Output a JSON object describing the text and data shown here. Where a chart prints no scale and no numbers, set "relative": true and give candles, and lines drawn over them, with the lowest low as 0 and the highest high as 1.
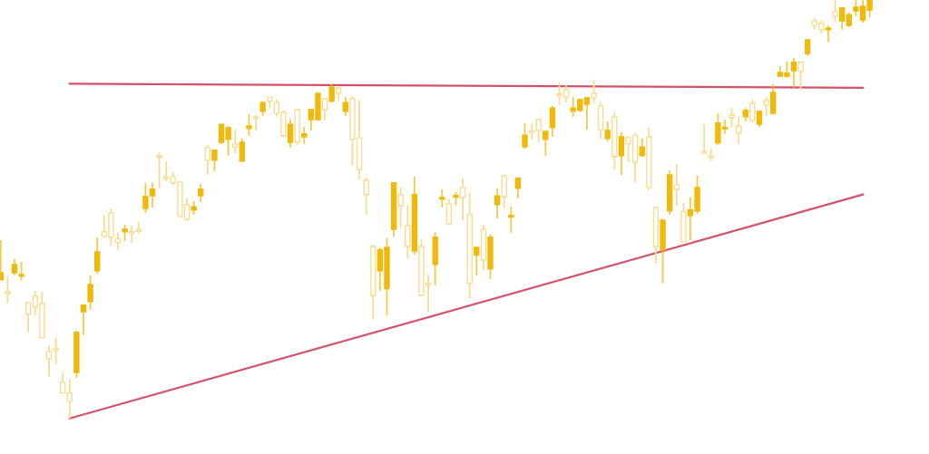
{
  "chart_data": {
    "type": "candlestick",
    "relative": true,
    "colors": [
      "#f0b90b",
      "#f7dd92",
      "#f0b90b",
      "#f0b90b",
      "#f7dd92",
      "#f7dd92",
      "#f7dd92",
      "#f7dd92",
      "#f7dd92",
      "#f7dd92",
      "#f7dd92",
      "#f0b90b",
      "#f0b90b",
      "#f0b90b",
      "#f0b90b",
      "#f7dd92",
      "#f7dd92",
      "#f7dd92",
      "#f0b90b",
      "#f7dd92",
      "#f7dd92",
      "#f0b90b",
      "#f0b90b",
      "#f7dd92",
      "#f7dd92",
      "#f7dd92",
      "#f7dd92",
      "#f7dd92",
      "#f0b90b",
      "#f0b90b",
      "#f7dd92",
      "#f0b90b",
      "#f0b90b",
      "#f0b90b",
      "#f7dd92",
      "#f0b90b",
      "#f0b90b",
      "#f7dd92",
      "#f0b90b",
      "#f7dd92",
      "#f7dd92",
      "#f7dd92",
      "#f0b90b",
      "#f7dd92",
      "#f0b90b",
      "#f0b90b",
      "#f0b90b",
      "#f7dd92",
      "#f0b90b",
      "#f7dd92",
      "#f0b90b",
      "#f7dd92",
      "#f7dd92",
      "#f7dd92",
      "#f7dd92",
      "#f0b90b",
      "#f0b90b",
      "#f0b90b",
      "#f7dd92",
      "#f7dd92",
      "#f0b90b",
      "#f7dd92",
      "#f7dd92",
      "#f0b90b",
      "#f0b90b",
      "#f7dd92",
      "#f0b90b",
      "#f7dd92",
      "#f7dd92",
      "#f0b90b",
      "#f7dd92",
      "#f0b90b",
      "#f0b90b",
      "#f7dd92",
      "#f0b90b",
      "#f0b90b",
      "#f0b90b",
      "#f7dd92",
      "#f7dd92",
      "#f0b90b",
      "#f0b90b",
      "#f7dd92",
      "#f7dd92",
      "#f0b90b",
      "#f0b90b",
      "#f0b90b",
      "#f7dd92",
      "#f7dd92",
      "#f0b90b",
      "#f7dd92",
      "#f0b90b",
      "#f7dd92",
      "#f7dd92",
      "#f0b90b",
      "#f7dd92",
      "#f7dd92",
      "#f0b90b",
      "#f0b90b",
      "#f7dd92",
      "#f7dd92",
      "#f0b90b",
      "#f0b90b",
      "#f7dd92",
      "#f7dd92",
      "#f0b90b",
      "#f0b90b",
      "#f7dd92",
      "#f7dd92",
      "#f0b90b",
      "#f7dd92",
      "#f0b90b",
      "#f7dd92",
      "#f0b90b",
      "#f0b90b",
      "#f0b90b",
      "#f0b90b",
      "#f7dd92",
      "#f0b90b",
      "#f7dd92",
      "#f7dd92",
      "#f0b90b",
      "#f7dd92",
      "#f0b90b",
      "#f0b90b",
      "#f0b90b",
      "#f0b90b",
      "#f0b90b",
      null,
      null,
      null,
      null,
      null
    ],
    "categories": [
      null,
      null,
      null,
      null,
      null,
      null,
      null,
      null,
      null,
      null,
      null,
      null,
      null,
      null,
      null,
      null,
      null,
      null,
      null,
      null,
      null,
      null,
      null,
      null,
      null,
      null,
      null,
      null,
      null,
      null,
      null,
      null,
      null,
      null,
      null,
      null,
      null,
      null,
      null,
      null,
      null,
      null,
      null,
      null,
      null,
      null,
      null,
      null,
      null,
      null,
      null,
      null,
      null,
      null,
      null,
      null,
      null,
      null,
      null,
      null,
      null,
      null,
      null,
      null,
      null,
      null,
      null,
      null,
      null,
      null,
      null,
      null,
      null,
      null,
      null,
      null,
      null,
      null,
      null,
      null,
      null,
      null,
      null,
      null,
      null,
      null,
      null,
      null,
      null,
      null,
      null,
      null,
      null,
      null,
      null,
      null,
      null,
      null,
      null,
      null,
      null,
      null,
      null,
      null,
      null,
      null,
      null,
      null,
      null,
      null,
      null,
      null,
      null,
      null,
      null,
      null,
      null,
      null,
      null,
      null,
      null,
      null,
      null,
      null,
      null,
      null,
      null,
      null,
      null,
      null,
      null,
      null
    ],
    "ohlc": [
      [
        0.331,
        0.426,
        0.331,
        0.348
      ],
      [
        0.303,
        0.34,
        0.275,
        0.299
      ],
      [
        0.348,
        0.381,
        0.342,
        0.368
      ],
      [
        0.34,
        0.374,
        0.329,
        0.344
      ],
      [
        0.277,
        0.279,
        0.206,
        0.249
      ],
      [
        0.292,
        0.305,
        0.247,
        0.266
      ],
      [
        0.275,
        0.303,
        0.193,
        0.193
      ],
      [
        0.16,
        0.173,
        0.1,
        0.143
      ],
      [
        0.167,
        0.193,
        0.13,
        0.163
      ],
      [
        0.087,
        0.11,
        0.061,
        0.061
      ],
      [
        0.061,
        0.095,
        0.0,
        0.041
      ],
      [
        0.11,
        0.21,
        0.097,
        0.206
      ],
      [
        0.255,
        0.273,
        0.199,
        0.271
      ],
      [
        0.279,
        0.342,
        0.26,
        0.32
      ],
      [
        0.353,
        0.433,
        0.346,
        0.398
      ],
      [
        0.446,
        0.487,
        0.433,
        0.435
      ],
      [
        0.491,
        0.502,
        0.413,
        0.433
      ],
      [
        0.429,
        0.444,
        0.403,
        0.42
      ],
      [
        0.446,
        0.463,
        0.424,
        0.452
      ],
      [
        0.444,
        0.461,
        0.42,
        0.442
      ],
      [
        0.45,
        0.47,
        0.442,
        0.447
      ],
      [
        0.502,
        0.563,
        0.491,
        0.53
      ],
      [
        0.532,
        0.563,
        0.504,
        0.548
      ],
      [
        0.628,
        0.636,
        0.55,
        0.624
      ],
      [
        0.576,
        0.615,
        0.567,
        0.573
      ],
      [
        0.578,
        0.589,
        0.558,
        0.563
      ],
      [
        0.565,
        0.567,
        0.481,
        0.483
      ],
      [
        0.511,
        0.526,
        0.472,
        0.476
      ],
      [
        0.498,
        0.519,
        0.487,
        0.506
      ],
      [
        0.532,
        0.561,
        0.517,
        0.548
      ],
      [
        0.647,
        0.654,
        0.582,
        0.617
      ],
      [
        0.617,
        0.641,
        0.591,
        0.641
      ],
      [
        0.66,
        0.703,
        0.656,
        0.703
      ],
      [
        0.667,
        0.699,
        0.628,
        0.695
      ],
      [
        0.656,
        0.69,
        0.634,
        0.649
      ],
      [
        0.615,
        0.669,
        0.613,
        0.66
      ],
      [
        0.693,
        0.727,
        0.675,
        0.699
      ],
      [
        0.719,
        0.725,
        0.688,
        0.716
      ],
      [
        0.734,
        0.758,
        0.723,
        0.755
      ],
      [
        0.768,
        0.768,
        0.742,
        0.758
      ],
      [
        0.755,
        0.762,
        0.721,
        0.729
      ],
      [
        0.732,
        0.736,
        0.673,
        0.675
      ],
      [
        0.66,
        0.716,
        0.647,
        0.703
      ],
      [
        0.738,
        0.74,
        0.654,
        0.66
      ],
      [
        0.673,
        0.697,
        0.656,
        0.68
      ],
      [
        0.714,
        0.74,
        0.688,
        0.738
      ],
      [
        0.714,
        0.777,
        0.712,
        0.777
      ],
      [
        0.764,
        0.766,
        0.712,
        0.738
      ],
      [
        0.758,
        0.799,
        0.755,
        0.792
      ],
      [
        0.79,
        0.79,
        0.76,
        0.777
      ],
      [
        0.734,
        0.768,
        0.723,
        0.755
      ],
      [
        0.764,
        0.771,
        0.604,
        0.667
      ],
      [
        0.671,
        0.76,
        0.571,
        0.595
      ],
      [
        0.569,
        0.576,
        0.487,
        0.535
      ],
      [
        0.411,
        0.416,
        0.236,
        0.294
      ],
      [
        0.353,
        0.409,
        0.305,
        0.403
      ],
      [
        0.31,
        0.431,
        0.247,
        0.409
      ],
      [
        0.452,
        0.563,
        0.435,
        0.563
      ],
      [
        0.535,
        0.552,
        0.455,
        0.509
      ],
      [
        0.461,
        0.509,
        0.381,
        0.411
      ],
      [
        0.4,
        0.578,
        0.392,
        0.535
      ],
      [
        0.411,
        0.429,
        0.292,
        0.294
      ],
      [
        0.323,
        0.344,
        0.255,
        0.319
      ],
      [
        0.368,
        0.446,
        0.318,
        0.433
      ],
      [
        0.524,
        0.548,
        0.504,
        0.527
      ],
      [
        0.513,
        0.524,
        0.463,
        0.465
      ],
      [
        0.529,
        0.541,
        0.509,
        0.532
      ],
      [
        0.552,
        0.574,
        0.474,
        0.528
      ],
      [
        0.487,
        0.539,
        0.286,
        0.323
      ],
      [
        0.39,
        0.409,
        0.342,
        0.409
      ],
      [
        0.452,
        0.463,
        0.355,
        0.379
      ],
      [
        0.357,
        0.439,
        0.333,
        0.433
      ],
      [
        0.511,
        0.55,
        0.478,
        0.532
      ],
      [
        0.58,
        0.582,
        0.502,
        0.53
      ],
      [
        0.481,
        0.506,
        0.444,
        0.483
      ],
      [
        0.55,
        0.576,
        0.526,
        0.574
      ],
      [
        0.649,
        0.706,
        0.645,
        0.677
      ],
      [
        0.686,
        0.703,
        0.667,
        0.683
      ],
      [
        0.714,
        0.716,
        0.66,
        0.688
      ],
      [
        0.667,
        0.686,
        0.628,
        0.686
      ],
      [
        0.695,
        0.747,
        0.673,
        0.742
      ],
      [
        0.774,
        0.803,
        0.749,
        0.772
      ],
      [
        0.786,
        0.797,
        0.755,
        0.768
      ],
      [
        0.734,
        0.768,
        0.721,
        0.742
      ],
      [
        0.736,
        0.764,
        0.732,
        0.762
      ],
      [
        0.751,
        0.768,
        0.69,
        0.766
      ],
      [
        0.777,
        0.81,
        0.755,
        0.766
      ],
      [
        0.747,
        0.755,
        0.667,
        0.69
      ],
      [
        0.669,
        0.71,
        0.662,
        0.688
      ],
      [
        0.721,
        0.734,
        0.595,
        0.626
      ],
      [
        0.628,
        0.684,
        0.582,
        0.673
      ],
      [
        0.671,
        0.675,
        0.613,
        0.656
      ],
      [
        0.677,
        0.682,
        0.563,
        0.613
      ],
      [
        0.628,
        0.669,
        0.626,
        0.649
      ],
      [
        0.673,
        0.695,
        0.545,
        0.552
      ],
      [
        0.504,
        0.504,
        0.37,
        0.411
      ],
      [
        0.403,
        0.474,
        0.323,
        0.474
      ],
      [
        0.496,
        0.593,
        0.487,
        0.582
      ],
      [
        0.558,
        0.608,
        0.509,
        0.548
      ],
      [
        0.494,
        0.515,
        0.422,
        0.422
      ],
      [
        0.485,
        0.528,
        0.426,
        0.498
      ],
      [
        0.496,
        0.58,
        0.489,
        0.552
      ],
      [
        0.636,
        0.703,
        0.632,
        0.634
      ],
      [
        0.626,
        0.645,
        0.615,
        0.623
      ],
      [
        0.658,
        0.729,
        0.654,
        0.706
      ],
      [
        0.692,
        0.714,
        0.68,
        0.695
      ],
      [
        0.725,
        0.742,
        0.695,
        0.719
      ],
      [
        0.699,
        0.721,
        0.656,
        0.682
      ],
      [
        0.721,
        0.742,
        0.71,
        0.736
      ],
      [
        0.753,
        0.762,
        0.708,
        0.712
      ],
      [
        0.703,
        0.736,
        0.697,
        0.734
      ],
      [
        0.76,
        0.768,
        0.723,
        0.749
      ],
      [
        0.729,
        0.799,
        0.727,
        0.779
      ],
      [
        0.818,
        0.842,
        0.818,
        0.827
      ],
      [
        0.818,
        0.853,
        0.814,
        0.825
      ],
      [
        0.831,
        0.861,
        0.79,
        0.851
      ],
      [
        0.851,
        0.851,
        0.784,
        0.829
      ],
      [
        0.872,
        0.907,
        0.866,
        0.905
      ],
      [
        0.95,
        0.957,
        0.929,
        0.939
      ],
      [
        0.944,
        0.952,
        0.92,
        0.929
      ],
      [
        0.929,
        0.939,
        0.9,
        0.931
      ],
      [
        0.972,
        1.0,
        0.946,
        0.961
      ],
      [
        0.95,
        0.983,
        0.929,
        0.981
      ],
      [
        0.939,
        0.97,
        0.935,
        0.965
      ],
      [
        0.974,
        1.0,
        0.961,
        0.983
      ],
      [
        0.952,
        1.0,
        0.946,
        0.985
      ],
      [
        0.976,
        1.0,
        0.959,
        1.0
      ],
      null,
      null,
      null,
      null,
      null
    ],
    "series": [
      {
        "type": "line",
        "color": "#d6506a",
        "values": [
          null,
          null,
          null,
          null,
          null,
          null,
          null,
          null,
          null,
          null,
          0.8,
          null,
          null,
          null,
          null,
          null,
          null,
          null,
          null,
          null,
          null,
          null,
          null,
          null,
          null,
          null,
          null,
          null,
          null,
          null,
          null,
          null,
          null,
          null,
          null,
          null,
          null,
          null,
          null,
          null,
          null,
          null,
          null,
          null,
          null,
          null,
          null,
          null,
          null,
          null,
          null,
          null,
          null,
          null,
          null,
          null,
          null,
          null,
          null,
          null,
          null,
          null,
          null,
          null,
          null,
          null,
          null,
          null,
          null,
          null,
          null,
          null,
          null,
          null,
          null,
          null,
          null,
          null,
          null,
          null,
          null,
          null,
          null,
          null,
          null,
          null,
          null,
          null,
          null,
          null,
          null,
          null,
          null,
          null,
          null,
          null,
          null,
          null,
          null,
          null,
          null,
          null,
          null,
          null,
          null,
          null,
          null,
          null,
          null,
          null,
          null,
          null,
          null,
          null,
          null,
          null,
          null,
          null,
          null,
          null,
          null,
          null,
          null,
          null,
          null,
          0.79,
          null,
          null,
          null,
          null,
          null,
          null
        ]
      },
      {
        "type": "line",
        "color": "#d6506a",
        "values": [
          null,
          null,
          null,
          null,
          null,
          null,
          null,
          null,
          null,
          null,
          0.0,
          null,
          null,
          null,
          null,
          null,
          null,
          null,
          null,
          null,
          null,
          null,
          null,
          null,
          null,
          null,
          null,
          null,
          null,
          null,
          null,
          null,
          null,
          null,
          null,
          null,
          null,
          null,
          null,
          null,
          null,
          null,
          null,
          null,
          null,
          null,
          null,
          null,
          null,
          null,
          null,
          null,
          null,
          null,
          null,
          null,
          null,
          null,
          null,
          null,
          null,
          null,
          null,
          null,
          null,
          null,
          null,
          null,
          null,
          null,
          null,
          null,
          null,
          null,
          null,
          null,
          null,
          null,
          null,
          null,
          null,
          null,
          null,
          null,
          null,
          null,
          null,
          null,
          null,
          null,
          null,
          null,
          null,
          null,
          null,
          null,
          null,
          null,
          null,
          null,
          null,
          null,
          null,
          null,
          null,
          null,
          null,
          null,
          null,
          null,
          null,
          null,
          null,
          null,
          null,
          null,
          null,
          null,
          null,
          null,
          null,
          null,
          null,
          null,
          null,
          0.535,
          null,
          null,
          null,
          null,
          null,
          null
        ]
      }
    ]
  }
}
